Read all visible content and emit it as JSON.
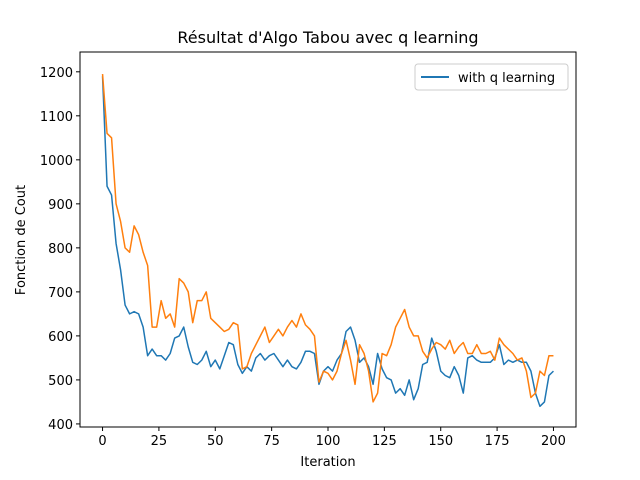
{
  "chart_data": {
    "type": "line",
    "title": "Résultat d'Algo Tabou avec q learning",
    "x_label": "Iteration",
    "y_label": "Fonction de Cout",
    "x": [
      0,
      2,
      4,
      6,
      8,
      10,
      12,
      14,
      16,
      18,
      20,
      22,
      24,
      26,
      28,
      30,
      32,
      34,
      36,
      38,
      40,
      42,
      44,
      46,
      48,
      50,
      52,
      54,
      56,
      58,
      60,
      62,
      64,
      66,
      68,
      70,
      72,
      74,
      76,
      78,
      80,
      82,
      84,
      86,
      88,
      90,
      92,
      94,
      96,
      98,
      100,
      102,
      104,
      106,
      108,
      110,
      112,
      114,
      116,
      118,
      120,
      122,
      124,
      126,
      128,
      130,
      132,
      134,
      136,
      138,
      140,
      142,
      144,
      146,
      148,
      150,
      152,
      154,
      156,
      158,
      160,
      162,
      164,
      166,
      168,
      170,
      172,
      174,
      176,
      178,
      180,
      182,
      184,
      186,
      188,
      190,
      192,
      194,
      196,
      198,
      200
    ],
    "series": [
      {
        "name": "with q learning",
        "color": "#1f77b4",
        "values": [
          1190,
          940,
          920,
          810,
          750,
          670,
          650,
          655,
          650,
          620,
          555,
          570,
          555,
          555,
          545,
          560,
          595,
          600,
          620,
          575,
          540,
          535,
          545,
          565,
          530,
          545,
          525,
          555,
          585,
          580,
          535,
          515,
          530,
          520,
          550,
          560,
          545,
          555,
          560,
          545,
          530,
          545,
          530,
          525,
          540,
          565,
          565,
          560,
          490,
          520,
          530,
          520,
          545,
          560,
          610,
          620,
          590,
          540,
          550,
          530,
          490,
          560,
          525,
          505,
          500,
          470,
          480,
          465,
          500,
          455,
          480,
          535,
          540,
          595,
          565,
          520,
          510,
          505,
          530,
          510,
          470,
          550,
          555,
          545,
          540,
          540,
          540,
          550,
          580,
          535,
          545,
          540,
          545,
          540,
          540,
          520,
          470,
          440,
          450,
          510,
          520
        ]
      },
      {
        "color": "#ff7f0e",
        "values": [
          1195,
          1060,
          1050,
          900,
          860,
          800,
          790,
          850,
          830,
          790,
          760,
          620,
          620,
          680,
          640,
          650,
          620,
          730,
          720,
          700,
          630,
          680,
          680,
          700,
          640,
          630,
          620,
          610,
          615,
          630,
          625,
          525,
          530,
          560,
          580,
          600,
          620,
          585,
          600,
          615,
          600,
          620,
          635,
          620,
          650,
          625,
          615,
          600,
          495,
          520,
          515,
          500,
          520,
          560,
          590,
          545,
          490,
          580,
          560,
          520,
          450,
          470,
          560,
          555,
          580,
          620,
          640,
          660,
          620,
          600,
          600,
          565,
          550,
          570,
          585,
          580,
          570,
          590,
          560,
          575,
          585,
          560,
          560,
          580,
          560,
          560,
          565,
          545,
          595,
          580,
          570,
          560,
          545,
          550,
          520,
          460,
          470,
          520,
          510,
          555,
          555
        ]
      }
    ],
    "xlim": [
      -10,
      210
    ],
    "ylim": [
      393,
      1245
    ],
    "xticks": [
      0,
      25,
      50,
      75,
      100,
      125,
      150,
      175,
      200
    ],
    "yticks": [
      400,
      500,
      600,
      700,
      800,
      900,
      1000,
      1100,
      1200
    ],
    "grid": false,
    "legend": "upper-right"
  }
}
